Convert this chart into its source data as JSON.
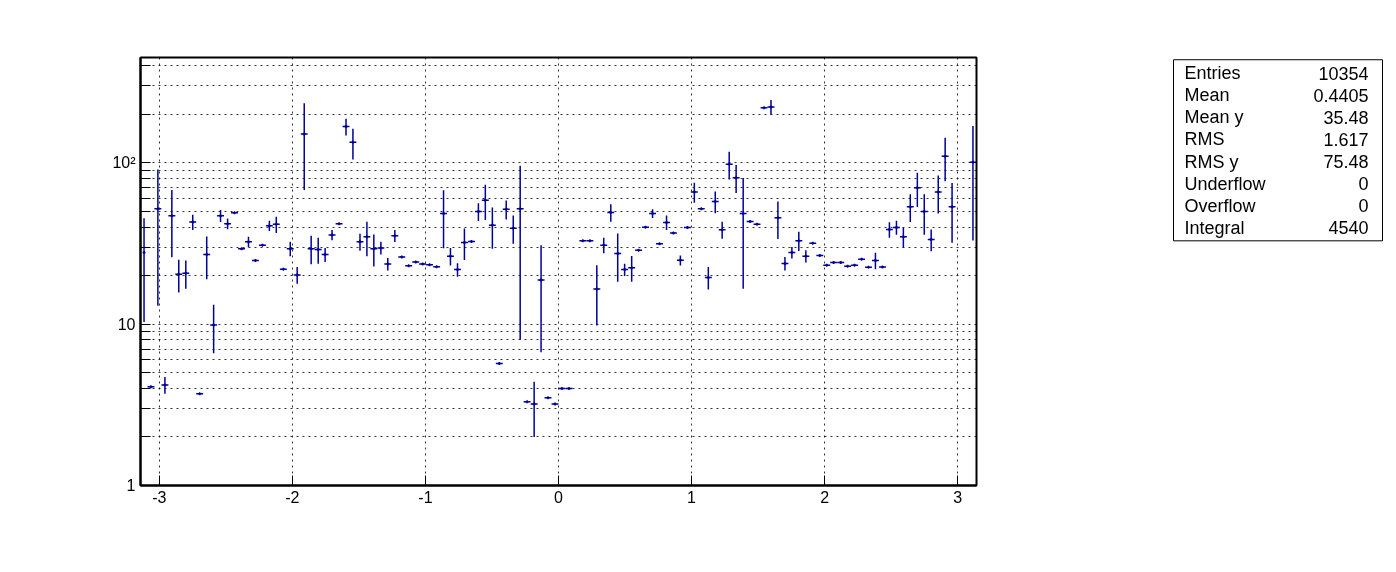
{
  "chart_data": {
    "type": "scatter",
    "marker": "cross",
    "color": "#000099",
    "log": true,
    "grid": true,
    "line_style": "dotted",
    "xlim": [
      -3.1416,
      3.1416
    ],
    "xticks": [
      -3,
      -2,
      -1,
      0,
      1,
      2,
      3
    ],
    "ylim": [
      1,
      450
    ],
    "yticks": [
      1,
      {
        "value": 2,
        "label": null
      },
      {
        "value": 3,
        "label": null
      },
      {
        "value": 4,
        "label": null
      },
      {
        "value": 5,
        "label": null
      },
      {
        "value": 6,
        "label": null
      },
      {
        "value": 7,
        "label": null
      },
      {
        "value": 8,
        "label": null
      },
      {
        "value": 9,
        "label": null
      },
      10,
      {
        "value": 20,
        "label": null
      },
      {
        "value": 30,
        "label": null
      },
      {
        "value": 40,
        "label": null
      },
      {
        "value": 50,
        "label": null
      },
      {
        "value": 60,
        "label": null
      },
      {
        "value": 70,
        "label": null
      },
      {
        "value": 80,
        "label": null
      },
      {
        "value": 90,
        "label": null
      },
      {
        "value": 100,
        "label": "10²"
      },
      {
        "value": 200,
        "label": null
      },
      {
        "value": 300,
        "label": null
      },
      {
        "value": 400,
        "label": null
      }
    ],
    "x": [
      -3.115,
      -3.063,
      -3.011,
      -2.958,
      -2.906,
      -2.854,
      -2.801,
      -2.749,
      -2.697,
      -2.644,
      -2.592,
      -2.54,
      -2.487,
      -2.435,
      -2.382,
      -2.33,
      -2.278,
      -2.225,
      -2.173,
      -2.121,
      -2.068,
      -2.016,
      -1.964,
      -1.911,
      -1.859,
      -1.806,
      -1.754,
      -1.702,
      -1.649,
      -1.597,
      -1.545,
      -1.492,
      -1.44,
      -1.388,
      -1.335,
      -1.283,
      -1.23,
      -1.178,
      -1.126,
      -1.073,
      -1.021,
      -0.969,
      -0.916,
      -0.864,
      -0.812,
      -0.759,
      -0.707,
      -0.654,
      -0.602,
      -0.55,
      -0.497,
      -0.445,
      -0.393,
      -0.34,
      -0.288,
      -0.236,
      -0.183,
      -0.131,
      -0.079,
      -0.026,
      0.026,
      0.079,
      0.131,
      0.183,
      0.236,
      0.288,
      0.34,
      0.393,
      0.445,
      0.497,
      0.55,
      0.602,
      0.654,
      0.707,
      0.759,
      0.812,
      0.864,
      0.916,
      0.969,
      1.021,
      1.073,
      1.126,
      1.178,
      1.23,
      1.283,
      1.335,
      1.388,
      1.44,
      1.492,
      1.545,
      1.597,
      1.649,
      1.702,
      1.754,
      1.806,
      1.859,
      1.911,
      1.964,
      2.016,
      2.068,
      2.121,
      2.173,
      2.225,
      2.278,
      2.33,
      2.382,
      2.435,
      2.487,
      2.54,
      2.592,
      2.644,
      2.697,
      2.749,
      2.801,
      2.854,
      2.906,
      2.958,
      3.011,
      3.063,
      3.115
    ],
    "values": [
      27.8,
      4.1,
      52,
      4.2,
      47,
      20.4,
      20.7,
      43,
      3.7,
      27,
      9.9,
      47,
      42,
      49,
      29.4,
      32.4,
      24.8,
      30.9,
      40.8,
      41.6,
      21.9,
      29.4,
      20.2,
      151,
      29.4,
      29,
      27,
      35.7,
      42,
      168,
      134,
      32.4,
      34.8,
      29.4,
      29.7,
      23.6,
      35.3,
      26.1,
      23,
      24.3,
      23.6,
      23.4,
      22.7,
      48.6,
      26.4,
      21.8,
      32.1,
      32.6,
      49.9,
      58.7,
      41.1,
      5.7,
      51.5,
      39.3,
      52,
      3.3,
      3.2,
      18.8,
      3.5,
      3.2,
      4.0,
      4.0,
      null,
      32.9,
      32.9,
      16.5,
      30.9,
      49.3,
      27.4,
      21.8,
      22.4,
      28.7,
      39.9,
      48.6,
      31.5,
      42.7,
      36.8,
      24.9,
      39.8,
      66,
      52,
      19.5,
      57.6,
      38.5,
      98,
      81,
      48.6,
      43.3,
      41.6,
      220,
      222,
      45.7,
      23.8,
      27.8,
      32.9,
      26.4,
      31.7,
      26.7,
      23.2,
      24.1,
      24.1,
      22.9,
      23.2,
      25.3,
      22.5,
      24.8,
      22.6,
      38.6,
      39.8,
      34.8,
      53.5,
      70,
      49.9,
      33.5,
      66,
      110,
      53.5,
      null,
      null,
      101
    ],
    "errors": [
      17.5,
      null,
      39,
      0.5,
      21,
      4.7,
      4.1,
      4.7,
      null,
      8,
      3.3,
      4,
      3.2,
      null,
      null,
      2.4,
      null,
      null,
      3,
      4.8,
      null,
      3,
      2.4,
      83,
      5.9,
      5.3,
      2.7,
      2.6,
      null,
      20,
      29,
      3.9,
      8.4,
      6.6,
      2.7,
      2.1,
      3,
      null,
      null,
      null,
      null,
      null,
      null,
      19,
      3.3,
      2.1,
      7.1,
      null,
      6.3,
      14.5,
      11.7,
      null,
      6.9,
      7.8,
      44,
      null,
      1.2,
      12.1,
      null,
      null,
      null,
      null,
      null,
      null,
      null,
      6.7,
      3.4,
      6.1,
      9.1,
      1.9,
      4.1,
      null,
      null,
      3,
      null,
      4.4,
      null,
      1.8,
      null,
      9.4,
      null,
      3.1,
      8.9,
      4.7,
      19,
      16,
      32,
      null,
      null,
      null,
      23,
      12,
      2.3,
      2.3,
      4.5,
      2.3,
      null,
      null,
      null,
      null,
      null,
      null,
      null,
      null,
      null,
      2.9,
      null,
      4.2,
      4,
      5,
      10.5,
      16.8,
      14.1,
      5.2,
      17.5,
      33,
      21.5,
      null,
      null,
      68
    ],
    "xerrors": [
      null,
      0.026,
      0.026,
      0.026,
      0.026,
      0.026,
      0.026,
      0.026,
      0.026,
      0.026,
      0.026,
      0.026,
      0.026,
      0.026,
      0.026,
      0.026,
      0.026,
      0.026,
      0.026,
      0.026,
      0.026,
      0.026,
      0.026,
      0.026,
      0.026,
      0.026,
      0.026,
      0.026,
      0.026,
      0.026,
      0.026,
      0.026,
      0.026,
      0.026,
      0.026,
      0.026,
      0.026,
      0.026,
      0.026,
      0.026,
      0.026,
      0.026,
      0.026,
      0.026,
      0.026,
      0.026,
      0.026,
      0.026,
      0.026,
      0.026,
      0.026,
      0.026,
      0.026,
      0.026,
      0.026,
      0.026,
      0.026,
      0.026,
      0.026,
      0.026,
      0.026,
      0.026,
      null,
      0.026,
      0.026,
      0.026,
      0.026,
      0.026,
      0.026,
      0.026,
      0.026,
      0.026,
      0.026,
      0.026,
      0.026,
      0.026,
      0.026,
      0.026,
      0.026,
      0.026,
      0.026,
      0.026,
      0.026,
      0.026,
      0.026,
      0.026,
      0.026,
      0.026,
      0.026,
      0.026,
      0.026,
      0.026,
      0.026,
      0.026,
      0.026,
      0.026,
      0.026,
      0.026,
      0.026,
      0.026,
      0.026,
      0.026,
      0.026,
      0.026,
      0.026,
      0.026,
      0.026,
      0.026,
      0.026,
      0.026,
      0.026,
      0.026,
      0.026,
      0.026,
      0.026,
      0.026,
      0.026,
      null,
      null,
      0.026
    ],
    "annotations": [
      "Entries",
      "10354",
      "Mean",
      "0.4405",
      "Mean y",
      "35.48",
      "RMS",
      "1.617",
      "RMS y",
      "75.48",
      "Underflow",
      "0",
      "Overflow",
      "0",
      "Integral",
      "4540"
    ]
  }
}
